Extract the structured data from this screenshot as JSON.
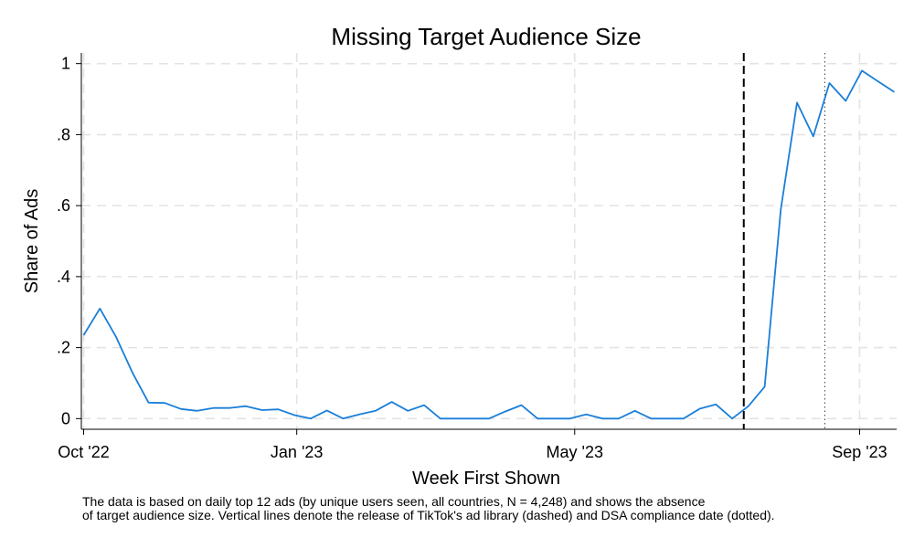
{
  "chart_data": {
    "type": "line",
    "title": "Missing Target Audience Size",
    "xlabel": "Week First Shown",
    "ylabel": "Share of Ads",
    "x_ticks": [
      {
        "label": "Oct '22",
        "date": "2022-10-01"
      },
      {
        "label": "Jan '23",
        "date": "2023-01-01"
      },
      {
        "label": "May '23",
        "date": "2023-05-01"
      },
      {
        "label": "Sep '23",
        "date": "2023-09-01"
      }
    ],
    "y_ticks": [
      {
        "label": "0",
        "value": 0
      },
      {
        "label": ".2",
        "value": 0.2
      },
      {
        "label": ".4",
        "value": 0.4
      },
      {
        "label": ".6",
        "value": 0.6
      },
      {
        "label": ".8",
        "value": 0.8
      },
      {
        "label": "1",
        "value": 1
      }
    ],
    "xlim": [
      "2022-09-30",
      "2023-09-17"
    ],
    "ylim": [
      -0.03,
      1.03
    ],
    "grid": true,
    "series": [
      {
        "color": "#1a7fd9",
        "points": [
          [
            "2022-10-01",
            0.235
          ],
          [
            "2022-10-08",
            0.31
          ],
          [
            "2022-10-15",
            0.23
          ],
          [
            "2022-10-22",
            0.13
          ],
          [
            "2022-10-29",
            0.045
          ],
          [
            "2022-11-05",
            0.044
          ],
          [
            "2022-11-12",
            0.027
          ],
          [
            "2022-11-19",
            0.022
          ],
          [
            "2022-11-26",
            0.03
          ],
          [
            "2022-12-03",
            0.03
          ],
          [
            "2022-12-10",
            0.035
          ],
          [
            "2022-12-17",
            0.024
          ],
          [
            "2022-12-24",
            0.026
          ],
          [
            "2022-12-31",
            0.01
          ],
          [
            "2023-01-07",
            0.0
          ],
          [
            "2023-01-14",
            0.023
          ],
          [
            "2023-01-21",
            0.0
          ],
          [
            "2023-01-28",
            0.012
          ],
          [
            "2023-02-04",
            0.022
          ],
          [
            "2023-02-11",
            0.047
          ],
          [
            "2023-02-18",
            0.022
          ],
          [
            "2023-02-25",
            0.038
          ],
          [
            "2023-03-04",
            0.0
          ],
          [
            "2023-03-11",
            0.0
          ],
          [
            "2023-03-18",
            0.0
          ],
          [
            "2023-03-25",
            0.0
          ],
          [
            "2023-04-01",
            0.02
          ],
          [
            "2023-04-08",
            0.038
          ],
          [
            "2023-04-15",
            0.0
          ],
          [
            "2023-04-22",
            0.0
          ],
          [
            "2023-04-29",
            0.0
          ],
          [
            "2023-05-06",
            0.012
          ],
          [
            "2023-05-13",
            0.0
          ],
          [
            "2023-05-20",
            0.0
          ],
          [
            "2023-05-27",
            0.022
          ],
          [
            "2023-06-03",
            0.0
          ],
          [
            "2023-06-10",
            0.0
          ],
          [
            "2023-06-17",
            0.0
          ],
          [
            "2023-06-24",
            0.028
          ],
          [
            "2023-07-01",
            0.04
          ],
          [
            "2023-07-08",
            0.0
          ],
          [
            "2023-07-15",
            0.035
          ],
          [
            "2023-07-22",
            0.09
          ],
          [
            "2023-07-29",
            0.59
          ],
          [
            "2023-08-05",
            0.89
          ],
          [
            "2023-08-12",
            0.795
          ],
          [
            "2023-08-19",
            0.945
          ],
          [
            "2023-08-26",
            0.895
          ],
          [
            "2023-09-02",
            0.98
          ],
          [
            "2023-09-09",
            0.95
          ],
          [
            "2023-09-16",
            0.92
          ]
        ]
      }
    ],
    "vertical_lines": [
      {
        "date": "2023-07-13",
        "style": "dashed",
        "color": "#000000"
      },
      {
        "date": "2023-08-17",
        "style": "dotted",
        "color": "#555555"
      }
    ]
  },
  "note": {
    "line1": "The data is based on daily top 12 ads (by unique users seen, all countries, N = 4,248) and shows the absence",
    "line2": "of target audience size. Vertical lines denote the release of TikTok's ad library (dashed) and DSA compliance date (dotted)."
  }
}
